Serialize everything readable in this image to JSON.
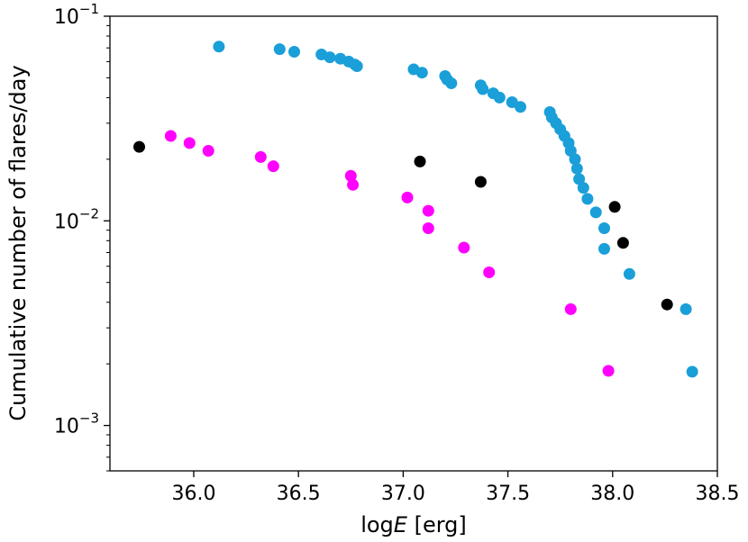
{
  "chart_data": {
    "type": "scatter",
    "xlabel_prefix": "log",
    "xlabel_var": "E",
    "xlabel_unit": "[erg]",
    "ylabel": "Cumulative number of flares/day",
    "xlim": [
      35.6,
      38.5
    ],
    "ylim": [
      0.0006,
      0.1
    ],
    "yscale": "log",
    "grid": false,
    "x_ticks": [
      36.0,
      36.5,
      37.0,
      37.5,
      38.0,
      38.5
    ],
    "x_tick_labels": [
      "36.0",
      "36.5",
      "37.0",
      "37.5",
      "38.0",
      "38.5"
    ],
    "y_major_ticks": [
      {
        "value": 0.1,
        "base": "10",
        "exp": "−1"
      },
      {
        "value": 0.01,
        "base": "10",
        "exp": "−2"
      },
      {
        "value": 0.001,
        "base": "10",
        "exp": "−3"
      }
    ],
    "series": [
      {
        "color": "#1a9fd8",
        "points": [
          [
            36.12,
            0.071
          ],
          [
            36.41,
            0.069
          ],
          [
            36.48,
            0.067
          ],
          [
            36.61,
            0.065
          ],
          [
            36.65,
            0.063
          ],
          [
            36.7,
            0.062
          ],
          [
            36.74,
            0.06
          ],
          [
            36.77,
            0.058
          ],
          [
            36.78,
            0.057
          ],
          [
            37.05,
            0.055
          ],
          [
            37.09,
            0.053
          ],
          [
            37.2,
            0.051
          ],
          [
            37.21,
            0.049
          ],
          [
            37.23,
            0.047
          ],
          [
            37.37,
            0.046
          ],
          [
            37.38,
            0.044
          ],
          [
            37.43,
            0.042
          ],
          [
            37.46,
            0.04
          ],
          [
            37.52,
            0.038
          ],
          [
            37.56,
            0.036
          ],
          [
            37.7,
            0.034
          ],
          [
            37.71,
            0.032
          ],
          [
            37.73,
            0.03
          ],
          [
            37.75,
            0.028
          ],
          [
            37.77,
            0.026
          ],
          [
            37.79,
            0.024
          ],
          [
            37.8,
            0.022
          ],
          [
            37.82,
            0.02
          ],
          [
            37.83,
            0.018
          ],
          [
            37.84,
            0.016
          ],
          [
            37.86,
            0.0145
          ],
          [
            37.88,
            0.0128
          ],
          [
            37.92,
            0.011
          ],
          [
            37.96,
            0.0092
          ],
          [
            37.96,
            0.0073
          ],
          [
            38.08,
            0.0055
          ],
          [
            38.35,
            0.0037
          ],
          [
            38.38,
            0.00183
          ]
        ]
      },
      {
        "color": "#ff00ff",
        "points": [
          [
            35.89,
            0.026
          ],
          [
            35.98,
            0.024
          ],
          [
            36.07,
            0.022
          ],
          [
            36.32,
            0.0205
          ],
          [
            36.38,
            0.0185
          ],
          [
            36.75,
            0.0166
          ],
          [
            36.76,
            0.015
          ],
          [
            37.02,
            0.013
          ],
          [
            37.12,
            0.0112
          ],
          [
            37.12,
            0.0092
          ],
          [
            37.29,
            0.0074
          ],
          [
            37.41,
            0.0056
          ],
          [
            37.8,
            0.0037
          ],
          [
            37.98,
            0.00185
          ]
        ]
      },
      {
        "color": "#000000",
        "points": [
          [
            35.74,
            0.023
          ],
          [
            37.08,
            0.0195
          ],
          [
            37.37,
            0.0155
          ],
          [
            38.01,
            0.0117
          ],
          [
            38.05,
            0.0078
          ],
          [
            38.26,
            0.0039
          ]
        ]
      }
    ]
  }
}
